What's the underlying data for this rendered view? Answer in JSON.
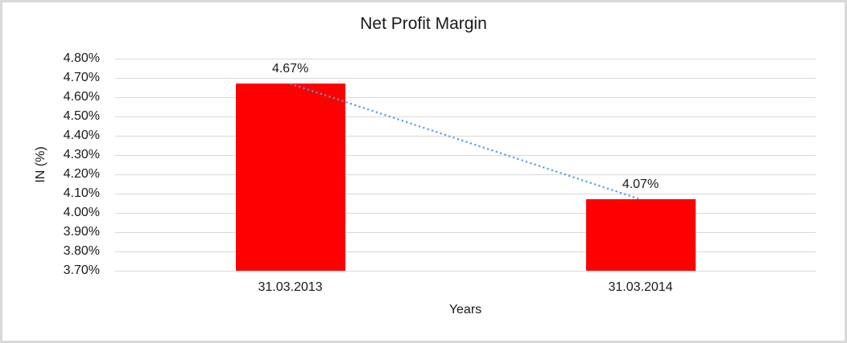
{
  "figure": {
    "background": "#ffffff",
    "border_color": "#d9d9d9"
  },
  "chart_data": {
    "type": "bar",
    "title": "Net Profit Margin",
    "xlabel": "Years",
    "ylabel": "IN (%)",
    "categories": [
      "31.03.2013",
      "31.03.2014"
    ],
    "values": [
      4.67,
      4.07
    ],
    "value_labels": [
      "4.67%",
      "4.07%"
    ],
    "ylim": [
      3.7,
      4.8
    ],
    "ytick_step": 0.1,
    "ytick_labels": [
      "4.80%",
      "4.70%",
      "4.60%",
      "4.50%",
      "4.40%",
      "4.30%",
      "4.20%",
      "4.10%",
      "4.00%",
      "3.90%",
      "3.80%",
      "3.70%"
    ],
    "grid": true,
    "legend": "none",
    "bar_color": "#ff0000",
    "gridline_color": "#d9d9d9",
    "text_color": "#1a1a1a",
    "trendline": {
      "style": "dotted",
      "color": "#5b9bd5",
      "connects": [
        "4.67%",
        "4.07%"
      ]
    }
  }
}
